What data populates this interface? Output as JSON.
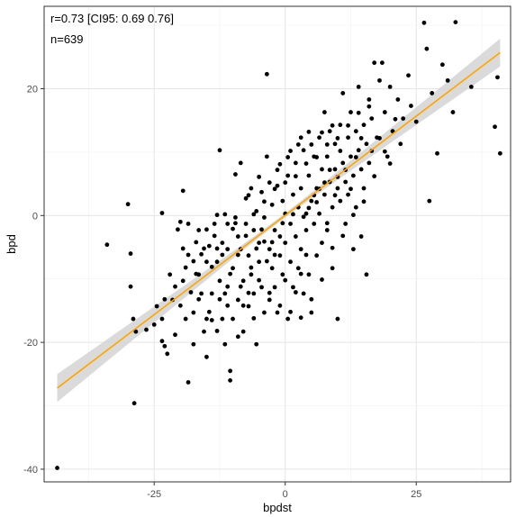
{
  "chart_data": {
    "type": "scatter",
    "xlabel": "bpdst",
    "ylabel": "bpd",
    "xlim": [
      -46,
      43
    ],
    "ylim": [
      -42,
      33
    ],
    "x_ticks": [
      -25,
      0,
      25
    ],
    "x_tick_labels": [
      "-25",
      "0",
      "25"
    ],
    "y_ticks": [
      -40,
      -20,
      0,
      20
    ],
    "y_tick_labels": [
      "-40",
      "-20",
      "0",
      "20"
    ],
    "minor_x_ticks": [
      -37.5,
      -12.5,
      12.5,
      37.5
    ],
    "minor_y_ticks": [
      -30,
      -10,
      10,
      30
    ],
    "grid": true,
    "annotations": [
      "r=0.73 [CI95: 0.69 0.76]",
      "n=639"
    ],
    "fit_line": {
      "x": [
        -43.5,
        41
      ],
      "y": [
        -27.2,
        25.7
      ],
      "ci_halfwidth_ends": 2.2,
      "ci_halfwidth_center": 0.35,
      "color": "#ffa500",
      "band_color": "#d3d3d3"
    },
    "point_color": "#000000",
    "points": [
      [
        -43.5,
        -39.8
      ],
      [
        -34,
        -4.6
      ],
      [
        -30,
        1.8
      ],
      [
        -29.5,
        -6
      ],
      [
        -29.5,
        -11.2
      ],
      [
        -29,
        -16.3
      ],
      [
        -28.5,
        -18.3
      ],
      [
        -28.8,
        -29.6
      ],
      [
        -26.5,
        -18
      ],
      [
        -24.5,
        -14.3
      ],
      [
        -23.5,
        -19.8
      ],
      [
        -23,
        -20.6
      ],
      [
        -22.5,
        -21.8
      ],
      [
        -23.5,
        -16.3
      ],
      [
        -23.5,
        0.4
      ],
      [
        -22,
        -9.3
      ],
      [
        -21.5,
        -13.3
      ],
      [
        -21,
        -18.8
      ],
      [
        -20,
        -1
      ],
      [
        -19.5,
        -10.3
      ],
      [
        -19,
        -16.3
      ],
      [
        -19.5,
        3.9
      ],
      [
        -18.5,
        -26.3
      ],
      [
        -18.5,
        -1.3
      ],
      [
        -17.5,
        -15.3
      ],
      [
        -17.5,
        -20.3
      ],
      [
        -16.5,
        -2.3
      ],
      [
        -16.5,
        -9.3
      ],
      [
        -16,
        -12.3
      ],
      [
        -15.5,
        -18.3
      ],
      [
        -15,
        -7.3
      ],
      [
        -15,
        -16.3
      ],
      [
        -14.5,
        -4.8
      ],
      [
        -14,
        -12.3
      ],
      [
        -14,
        -16.5
      ],
      [
        -13.5,
        -1.3
      ],
      [
        -13,
        0.1
      ],
      [
        -13,
        -7.3
      ],
      [
        -12.5,
        -10.3
      ],
      [
        -12.5,
        10.3
      ],
      [
        -12,
        -4.3
      ],
      [
        -12,
        -16.3
      ],
      [
        -11.5,
        -12.3
      ],
      [
        -11.5,
        -20.3
      ],
      [
        -11,
        -1.3
      ],
      [
        -11,
        -5.3
      ],
      [
        -10.5,
        -24.5
      ],
      [
        -10.5,
        -26
      ],
      [
        -10,
        -8.3
      ],
      [
        -10,
        -16.3
      ],
      [
        -9.5,
        -0.3
      ],
      [
        -9.5,
        6.5
      ],
      [
        -9,
        -3.3
      ],
      [
        -9,
        -13.3
      ],
      [
        -8.5,
        -5.3
      ],
      [
        -8.5,
        8.3
      ],
      [
        -8,
        -10.3
      ],
      [
        -8,
        -18.3
      ],
      [
        -7.5,
        -1.3
      ],
      [
        -7.5,
        2.7
      ],
      [
        -7,
        -6.3
      ],
      [
        -7,
        -14.3
      ],
      [
        -6.5,
        4.3
      ],
      [
        -6.5,
        -9.3
      ],
      [
        -6,
        -2.3
      ],
      [
        -6,
        -12.3
      ],
      [
        -5.5,
        0.7
      ],
      [
        -5.5,
        -20.3
      ],
      [
        -5,
        -4.3
      ],
      [
        -5,
        -7.3
      ],
      [
        -4.5,
        3.7
      ],
      [
        -4.5,
        -11.3
      ],
      [
        -4,
        -0.3
      ],
      [
        -4,
        -15.3
      ],
      [
        -3.5,
        9.3
      ],
      [
        -3.5,
        22.3
      ],
      [
        -3,
        -5.3
      ],
      [
        -3,
        -13.3
      ],
      [
        -2.5,
        1.7
      ],
      [
        -2.5,
        -8.3
      ],
      [
        -2,
        -2.3
      ],
      [
        -2,
        -11.3
      ],
      [
        -1.5,
        4.7
      ],
      [
        -1.5,
        -15.3
      ],
      [
        -1,
        -3.3
      ],
      [
        -1,
        -6.3
      ],
      [
        -0.5,
        2.3
      ],
      [
        -0.5,
        -9.3
      ],
      [
        0,
        0.3
      ],
      [
        0,
        -4.3
      ],
      [
        0.5,
        6.3
      ],
      [
        0.5,
        -16.3
      ],
      [
        1,
        -1.3
      ],
      [
        1,
        -7.3
      ],
      [
        1.5,
        3.3
      ],
      [
        1.5,
        -11.3
      ],
      [
        2,
        8.3
      ],
      [
        2,
        -3.3
      ],
      [
        2.5,
        1.3
      ],
      [
        2.5,
        -8.3
      ],
      [
        3,
        4.3
      ],
      [
        3,
        -5.3
      ],
      [
        3.5,
        10.3
      ],
      [
        3.5,
        -12.3
      ],
      [
        4,
        0.3
      ],
      [
        4,
        -2.3
      ],
      [
        4.5,
        6.3
      ],
      [
        4.5,
        -9.3
      ],
      [
        5,
        2.3
      ],
      [
        5,
        -15.3
      ],
      [
        5.5,
        9.3
      ],
      [
        5.5,
        -1.3
      ],
      [
        6,
        4.3
      ],
      [
        6,
        -6.3
      ],
      [
        6.5,
        12.3
      ],
      [
        6.5,
        0.3
      ],
      [
        7,
        7.3
      ],
      [
        7,
        -4.3
      ],
      [
        7.5,
        3.3
      ],
      [
        7.5,
        16.3
      ],
      [
        8,
        9.3
      ],
      [
        8,
        -2.3
      ],
      [
        8.5,
        5.3
      ],
      [
        8.5,
        13.3
      ],
      [
        9,
        1.3
      ],
      [
        9,
        -8.3
      ],
      [
        9.5,
        11.3
      ],
      [
        9.5,
        7.3
      ],
      [
        10,
        4.3
      ],
      [
        10,
        -16.3
      ],
      [
        10.5,
        14.3
      ],
      [
        10.5,
        2.3
      ],
      [
        11,
        8.3
      ],
      [
        11,
        19.3
      ],
      [
        11.5,
        5.3
      ],
      [
        11.5,
        -1.3
      ],
      [
        12,
        12.3
      ],
      [
        12,
        3.3
      ],
      [
        12.5,
        16.3
      ],
      [
        12.5,
        9.3
      ],
      [
        13,
        6.3
      ],
      [
        13,
        -5.3
      ],
      [
        13.5,
        13.3
      ],
      [
        13.5,
        1.3
      ],
      [
        14,
        10.3
      ],
      [
        14,
        20.3
      ],
      [
        14.5,
        7.3
      ],
      [
        14.5,
        -3.3
      ],
      [
        15,
        14.3
      ],
      [
        15,
        4.3
      ],
      [
        15.5,
        11.3
      ],
      [
        15.5,
        -9.3
      ],
      [
        16,
        18.3
      ],
      [
        16,
        8.3
      ],
      [
        16.5,
        15.3
      ],
      [
        17,
        24.1
      ],
      [
        17.5,
        12.3
      ],
      [
        18,
        21.3
      ],
      [
        18.5,
        24.1
      ],
      [
        19,
        16.3
      ],
      [
        19.5,
        9.3
      ],
      [
        20,
        20.3
      ],
      [
        20.5,
        13.3
      ],
      [
        21.5,
        18.3
      ],
      [
        22,
        11.3
      ],
      [
        22.5,
        15.3
      ],
      [
        23.5,
        22.1
      ],
      [
        24,
        17.3
      ],
      [
        25,
        14.8
      ],
      [
        26.5,
        30.4
      ],
      [
        27,
        26.3
      ],
      [
        27.5,
        2.3
      ],
      [
        28,
        19.3
      ],
      [
        29,
        9.8
      ],
      [
        30,
        23.8
      ],
      [
        31,
        21.3
      ],
      [
        32,
        16.3
      ],
      [
        32.5,
        30.5
      ],
      [
        35.5,
        20.3
      ],
      [
        40,
        14
      ],
      [
        40.5,
        21.8
      ],
      [
        41,
        9.8
      ],
      [
        -8,
        -14.2
      ],
      [
        -6,
        -16.2
      ],
      [
        -4,
        -4.1
      ],
      [
        -2,
        -6.2
      ],
      [
        0,
        -10.2
      ],
      [
        2,
        -12.1
      ],
      [
        4,
        -6.2
      ],
      [
        6,
        2.1
      ],
      [
        8,
        -1.2
      ],
      [
        10,
        6.1
      ],
      [
        -10,
        -2.1
      ],
      [
        -12,
        -6.2
      ],
      [
        -14,
        -8.1
      ],
      [
        -16,
        -6.1
      ],
      [
        -18,
        -12.1
      ],
      [
        -20,
        -14.2
      ],
      [
        -3,
        5.2
      ],
      [
        -1,
        8.1
      ],
      [
        1,
        10.2
      ],
      [
        3,
        12.3
      ],
      [
        5,
        11.2
      ],
      [
        7,
        13.1
      ],
      [
        9,
        14.2
      ],
      [
        -7,
        3.2
      ],
      [
        -5,
        6.1
      ],
      [
        -9,
        -19.1
      ],
      [
        -11,
        -14.2
      ],
      [
        -13,
        -18.2
      ],
      [
        -15,
        -22.3
      ],
      [
        -17,
        -9.2
      ],
      [
        3,
        -16.1
      ],
      [
        5,
        -13.2
      ],
      [
        7,
        -10.1
      ],
      [
        9,
        -5.1
      ],
      [
        11,
        -3.2
      ],
      [
        13,
        0.1
      ],
      [
        15,
        2.2
      ],
      [
        17,
        6.2
      ],
      [
        19,
        10.1
      ],
      [
        21,
        15.2
      ],
      [
        -6.5,
        -8.2
      ],
      [
        -4.5,
        -2.2
      ],
      [
        -2.5,
        -4.2
      ],
      [
        -0.5,
        -1.2
      ],
      [
        1.5,
        0.2
      ],
      [
        3.5,
        -0.2
      ],
      [
        5.5,
        3.2
      ],
      [
        7.5,
        5.2
      ],
      [
        9.5,
        3.2
      ],
      [
        11.5,
        7.2
      ],
      [
        13.5,
        9.2
      ],
      [
        -8.5,
        -11.2
      ],
      [
        -10.5,
        -9.2
      ],
      [
        -12.5,
        -13.2
      ],
      [
        -14.5,
        -15.2
      ],
      [
        -16.5,
        -13.2
      ],
      [
        -18.5,
        -6.2
      ],
      [
        -20.5,
        -2.2
      ],
      [
        -6,
        0.2
      ],
      [
        -4,
        2.2
      ],
      [
        -2,
        4.2
      ],
      [
        0,
        5.2
      ],
      [
        2,
        6.2
      ],
      [
        4,
        8.2
      ],
      [
        6,
        9.2
      ],
      [
        8,
        11.2
      ],
      [
        10,
        12.2
      ],
      [
        12,
        14.2
      ],
      [
        14,
        16.2
      ],
      [
        16,
        17.2
      ],
      [
        18,
        12.2
      ],
      [
        20,
        8.2
      ],
      [
        -1,
        -14.2
      ],
      [
        1,
        -15.2
      ],
      [
        3,
        -9.2
      ],
      [
        -3,
        -12.2
      ],
      [
        -5,
        -10.2
      ],
      [
        -7,
        -12.2
      ],
      [
        -9,
        -6.2
      ],
      [
        -11,
        -11.2
      ],
      [
        -13,
        -5.2
      ],
      [
        -15,
        -2.2
      ],
      [
        -17,
        -4.2
      ],
      [
        -19,
        -8.2
      ],
      [
        -21,
        -11.2
      ],
      [
        -23,
        -13.2
      ],
      [
        -25,
        -17.2
      ],
      [
        4.5,
        1.2
      ],
      [
        6.5,
        4.2
      ],
      [
        8.5,
        7.2
      ],
      [
        10.5,
        10.2
      ],
      [
        12.5,
        4.2
      ],
      [
        14.5,
        12.2
      ],
      [
        16.5,
        10.2
      ],
      [
        -1.5,
        7.2
      ],
      [
        0.5,
        9.2
      ],
      [
        2.5,
        11.2
      ],
      [
        4.5,
        13.2
      ],
      [
        -3.5,
        -7.2
      ],
      [
        -5.5,
        -5.2
      ],
      [
        -7.5,
        -3.2
      ],
      [
        -9.5,
        -1.2
      ],
      [
        -11.5,
        0.2
      ],
      [
        -13.5,
        -3.2
      ],
      [
        -15.5,
        -5.2
      ],
      [
        -17.5,
        -7.2
      ],
      [
        -19.5,
        -5.2
      ]
    ]
  }
}
